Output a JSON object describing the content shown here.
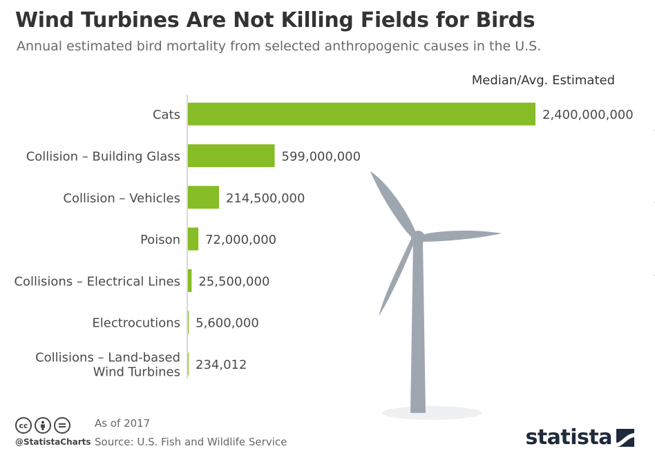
{
  "title": "Wind Turbines Are Not Killing Fields for Birds",
  "subtitle": "Annual estimated bird mortality from selected anthropogenic causes in the U.S.",
  "column_header": "Median/Avg. Estimated",
  "chart_data": {
    "type": "bar",
    "orientation": "horizontal",
    "categories": [
      "Cats",
      "Collision – Building Glass",
      "Collision – Vehicles",
      "Poison",
      "Collisions – Electrical Lines",
      "Electrocutions",
      "Collisions – Land-based Wind Turbines"
    ],
    "category_lines": [
      [
        "Cats"
      ],
      [
        "Collision – Building Glass"
      ],
      [
        "Collision – Vehicles"
      ],
      [
        "Poison"
      ],
      [
        "Collisions – Electrical Lines"
      ],
      [
        "Electrocutions"
      ],
      [
        "Collisions – Land-based",
        "Wind Turbines"
      ]
    ],
    "values": [
      2400000000,
      599000000,
      214500000,
      72000000,
      25500000,
      5600000,
      234012
    ],
    "value_labels": [
      "2,400,000,000",
      "599,000,000",
      "214,500,000",
      "72,000,000",
      "25,500,000",
      "5,600,000",
      "234,012"
    ],
    "xlim": [
      0,
      2400000000
    ],
    "bar_color": "#86bc25",
    "grid": false
  },
  "colors": {
    "bar": "#86bc25",
    "turbine": "#9ea7b0",
    "axis": "#cccccc"
  },
  "footer": {
    "license_icons": [
      "cc",
      "by",
      "nd"
    ],
    "handle": "@StatistaCharts",
    "as_of": "As of 2017",
    "source": "Source: U.S. Fish and Wildlife Service",
    "brand": "statista"
  }
}
